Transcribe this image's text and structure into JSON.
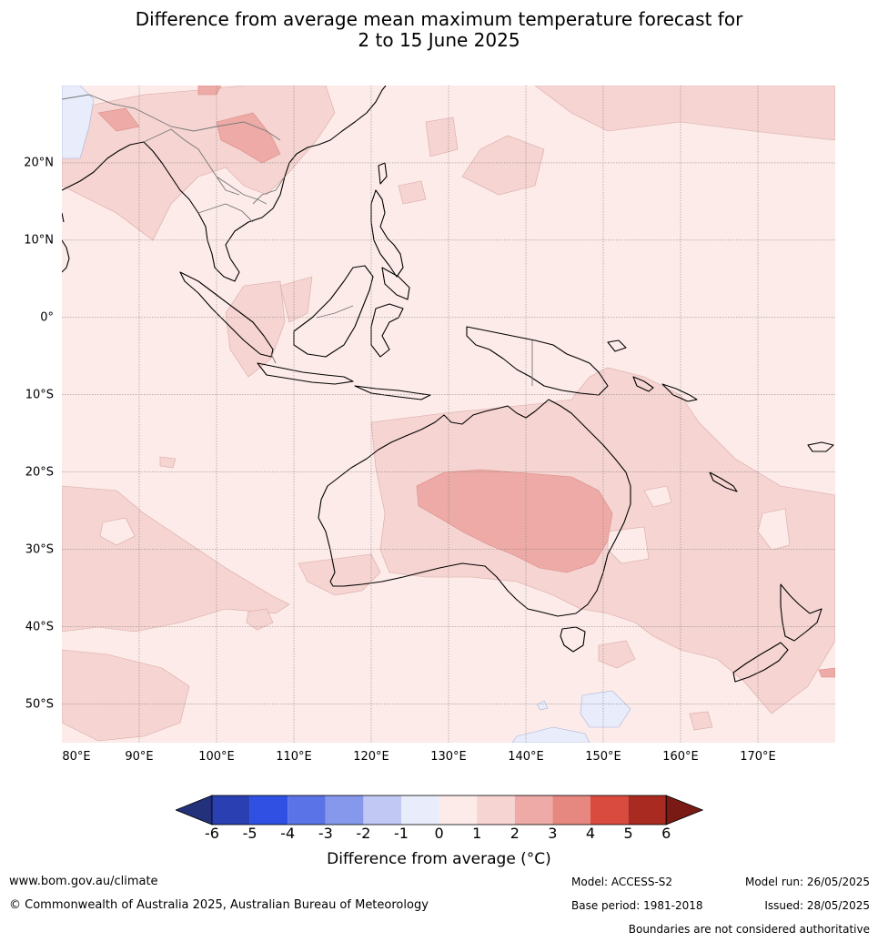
{
  "title": {
    "line1": "Difference from average mean maximum temperature forecast for",
    "line2": "2 to 15 June 2025"
  },
  "map": {
    "lon_range": [
      80,
      180
    ],
    "lat_range": [
      -55,
      30
    ],
    "latitude_labels": [
      "20°N",
      "10°N",
      "0°",
      "10°S",
      "20°S",
      "30°S",
      "40°S",
      "50°S"
    ],
    "latitude_values": [
      20,
      10,
      0,
      -10,
      -20,
      -30,
      -40,
      -50
    ],
    "longitude_labels": [
      "80°E",
      "90°E",
      "100°E",
      "110°E",
      "120°E",
      "130°E",
      "140°E",
      "150°E",
      "160°E",
      "170°E"
    ],
    "longitude_values": [
      80,
      90,
      100,
      110,
      120,
      130,
      140,
      150,
      160,
      170
    ],
    "background_anomaly_class": "0 to 1",
    "colors": {
      "ocean_base": "#fcebe9",
      "anomaly_1_2": "#f5d4d1",
      "anomaly_2_3": "#edaaa6",
      "anomaly_minus1_0": "#e8ecfb",
      "coastline": "#000000",
      "border": "#777777",
      "grid": "#777777"
    }
  },
  "colorbar": {
    "tick_labels": [
      "-6",
      "-5",
      "-4",
      "-3",
      "-2",
      "-1",
      "0",
      "1",
      "2",
      "3",
      "4",
      "5",
      "6"
    ],
    "colors": [
      "#23307a",
      "#2a3fb2",
      "#2f50e2",
      "#5a73e6",
      "#8598ec",
      "#c0c8f3",
      "#e8ecfb",
      "#fcebe9",
      "#f5d4d1",
      "#edaaa6",
      "#e68880",
      "#d94a3f",
      "#a82a20",
      "#7a1a14"
    ],
    "label": "Difference from average (°C)"
  },
  "footer": {
    "website": "www.bom.gov.au/climate",
    "copyright": "© Commonwealth of Australia 2025, Australian Bureau of Meteorology",
    "model": "Model: ACCESS-S2",
    "base_period": "Base period: 1981-2018",
    "model_run": "Model run: 26/05/2025",
    "issued": "Issued: 28/05/2025",
    "disclaimer": "Boundaries are not considered authoritative"
  }
}
